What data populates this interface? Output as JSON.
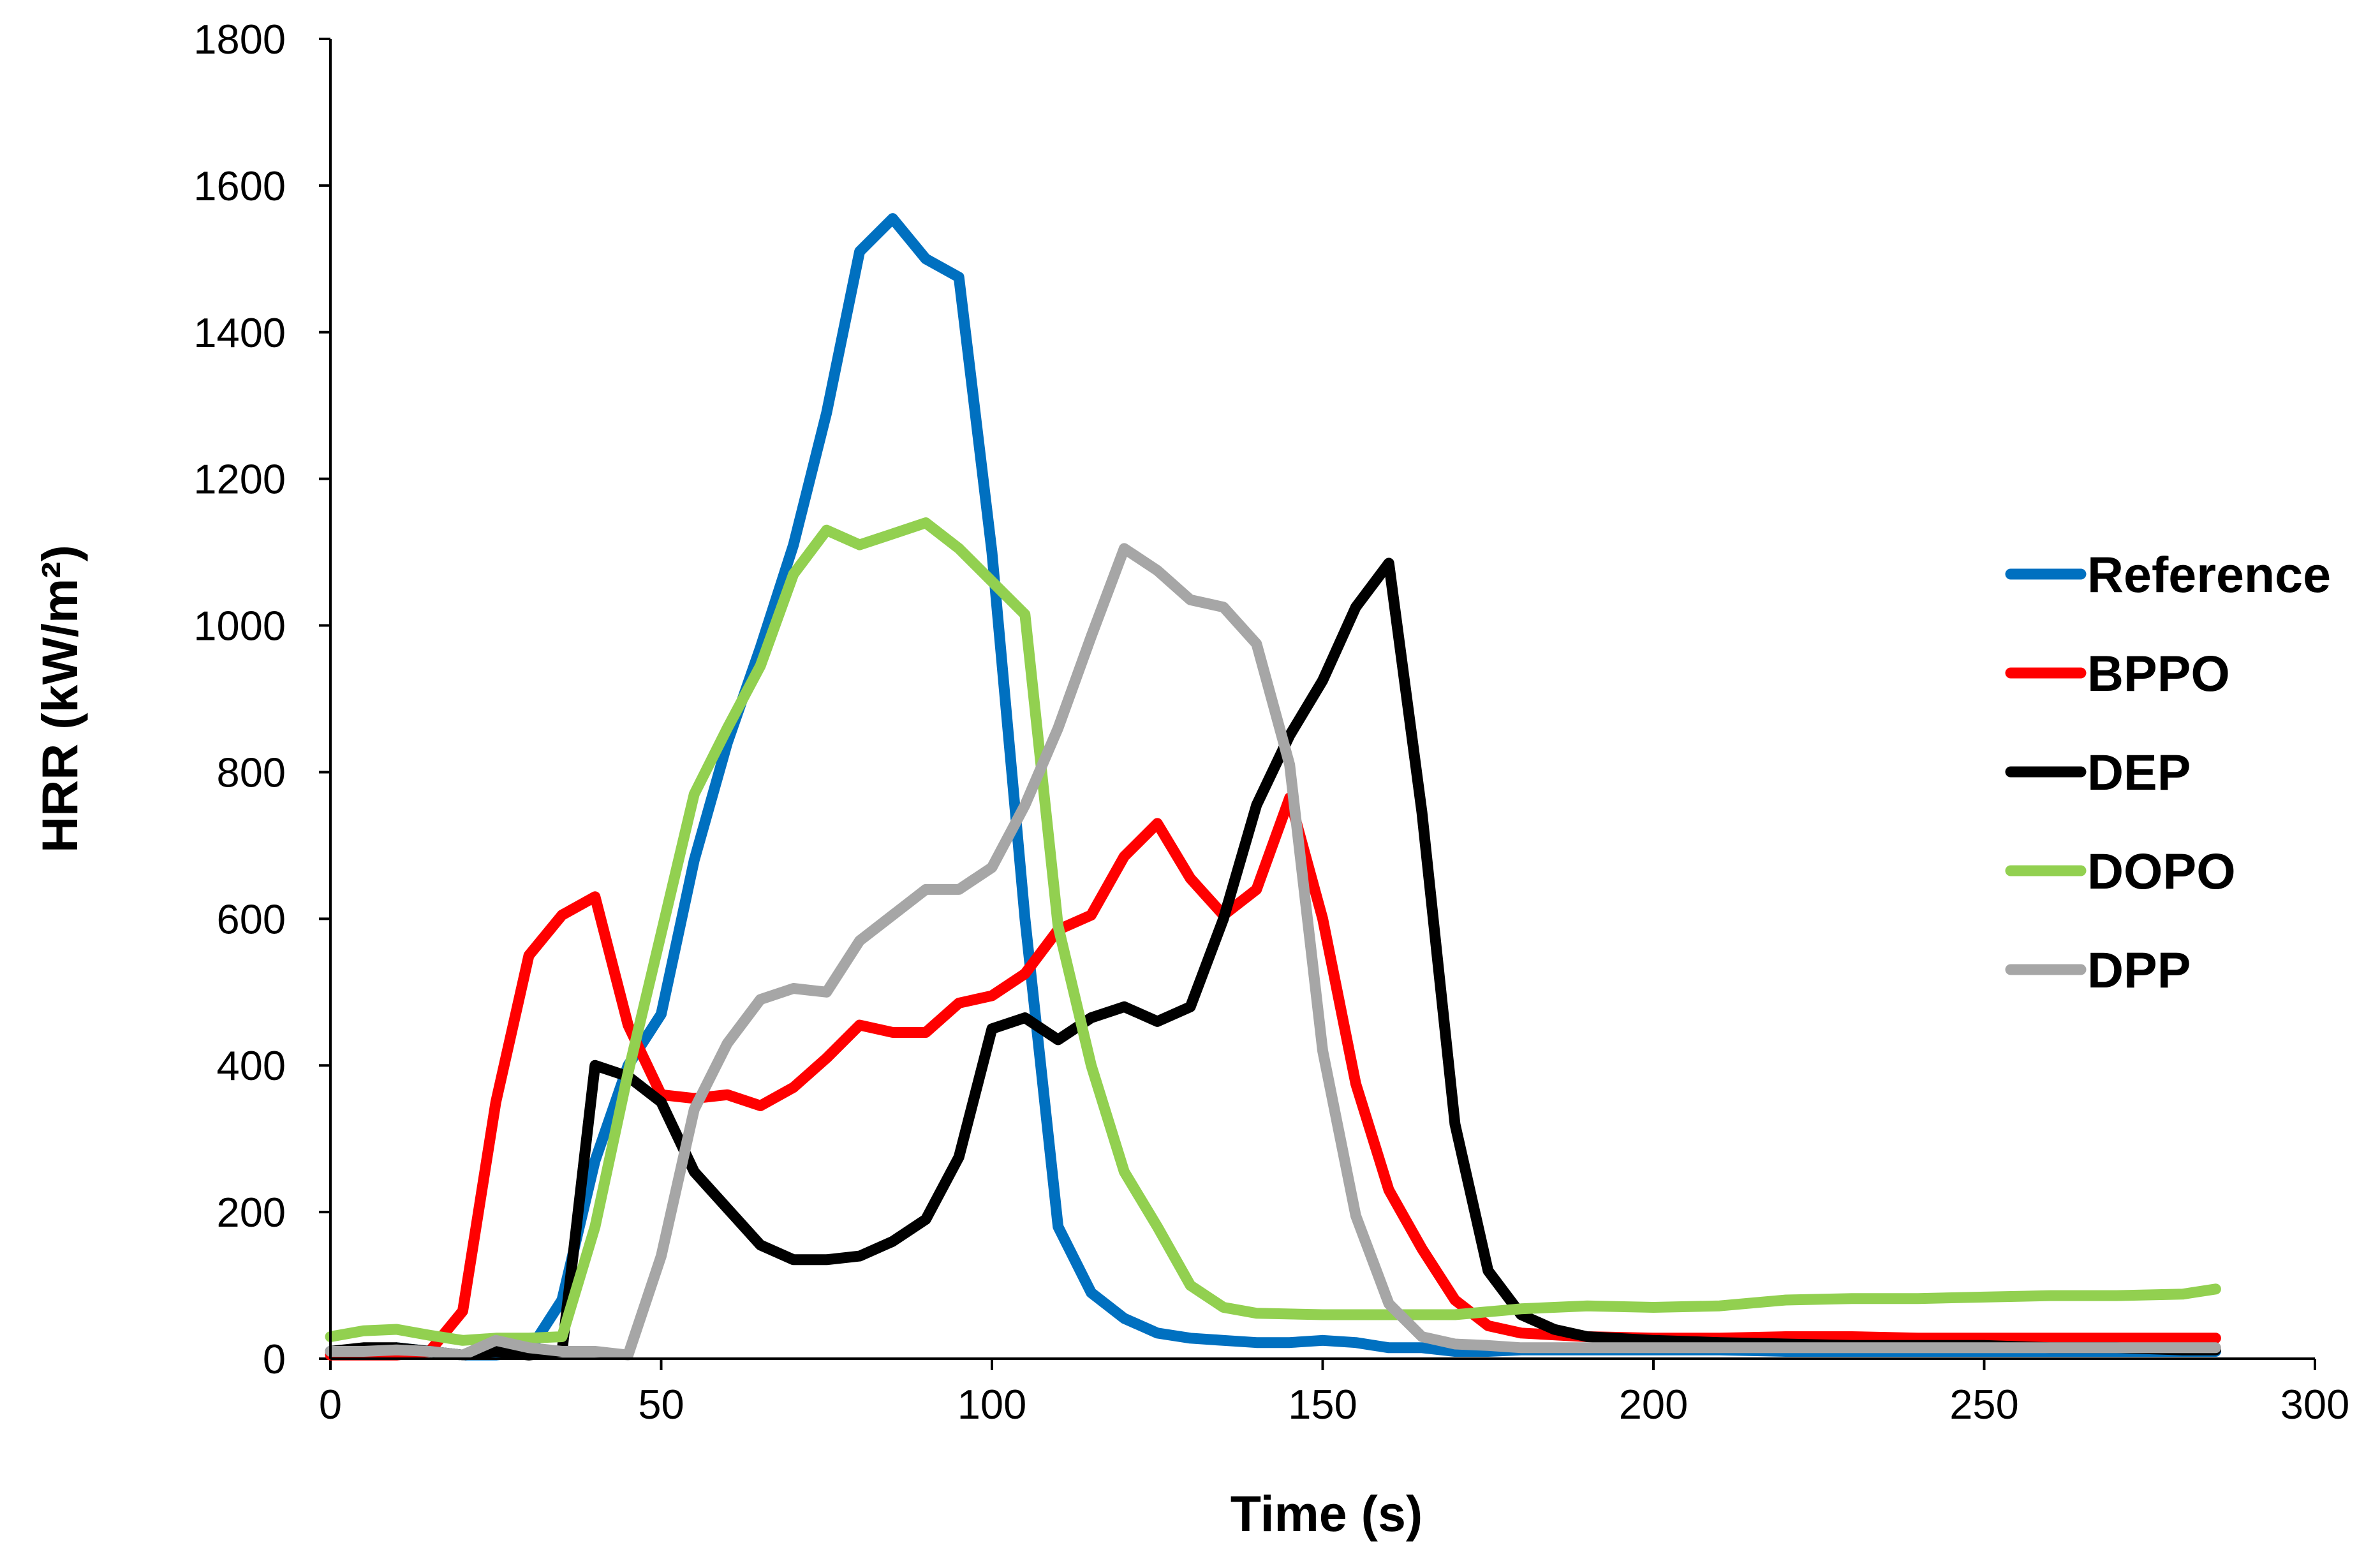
{
  "chart_data": {
    "type": "line",
    "title": "",
    "xlabel": "Time (s)",
    "ylabel": "HRR (kW/m²)",
    "xlim": [
      0,
      300
    ],
    "ylim": [
      0,
      1800
    ],
    "xticks": [
      0,
      50,
      100,
      150,
      200,
      250,
      300
    ],
    "yticks": [
      0,
      200,
      400,
      600,
      800,
      1000,
      1200,
      1400,
      1600,
      1800
    ],
    "grid": false,
    "legend_position": "right",
    "series": [
      {
        "name": "Reference",
        "color": "#0070C0",
        "x": [
          0,
          5,
          10,
          15,
          20,
          25,
          30,
          35,
          40,
          45,
          50,
          55,
          60,
          65,
          70,
          75,
          80,
          85,
          90,
          95,
          100,
          105,
          110,
          115,
          120,
          125,
          130,
          135,
          140,
          145,
          150,
          155,
          160,
          165,
          170,
          175,
          180,
          190,
          200,
          210,
          220,
          230,
          240,
          250,
          260,
          270,
          280,
          285
        ],
        "y": [
          10,
          12,
          15,
          10,
          5,
          5,
          10,
          80,
          270,
          400,
          470,
          680,
          840,
          970,
          1110,
          1290,
          1510,
          1555,
          1500,
          1475,
          1100,
          600,
          180,
          90,
          55,
          35,
          28,
          25,
          22,
          22,
          25,
          22,
          15,
          15,
          10,
          10,
          12,
          12,
          12,
          12,
          10,
          10,
          10,
          10,
          10,
          10,
          10,
          10
        ]
      },
      {
        "name": "BPPO",
        "color": "#FF0000",
        "x": [
          0,
          5,
          10,
          15,
          20,
          25,
          30,
          35,
          40,
          45,
          50,
          55,
          60,
          65,
          70,
          75,
          80,
          85,
          90,
          95,
          100,
          105,
          110,
          115,
          120,
          125,
          130,
          135,
          140,
          145,
          150,
          155,
          160,
          165,
          170,
          175,
          180,
          190,
          200,
          210,
          220,
          230,
          240,
          250,
          260,
          270,
          280,
          285
        ],
        "y": [
          5,
          5,
          5,
          10,
          65,
          350,
          550,
          605,
          630,
          455,
          360,
          355,
          360,
          345,
          370,
          410,
          455,
          445,
          445,
          485,
          495,
          525,
          585,
          605,
          685,
          730,
          655,
          605,
          640,
          765,
          600,
          375,
          230,
          150,
          80,
          45,
          35,
          30,
          28,
          28,
          30,
          30,
          28,
          28,
          28,
          28,
          28,
          28
        ]
      },
      {
        "name": "DEP",
        "color": "#000000",
        "x": [
          0,
          5,
          10,
          15,
          20,
          25,
          30,
          35,
          40,
          45,
          50,
          55,
          60,
          65,
          70,
          75,
          80,
          85,
          90,
          95,
          100,
          105,
          110,
          115,
          120,
          125,
          130,
          135,
          140,
          145,
          150,
          155,
          160,
          165,
          170,
          175,
          180,
          185,
          190,
          200,
          210,
          220,
          230,
          240,
          250,
          260,
          270,
          280,
          285
        ],
        "y": [
          10,
          15,
          15,
          10,
          5,
          10,
          5,
          10,
          400,
          385,
          350,
          255,
          205,
          155,
          135,
          135,
          140,
          160,
          190,
          275,
          450,
          465,
          435,
          465,
          480,
          460,
          480,
          600,
          755,
          850,
          925,
          1025,
          1085,
          745,
          320,
          120,
          60,
          40,
          30,
          25,
          22,
          20,
          18,
          18,
          18,
          15,
          15,
          12,
          12
        ]
      },
      {
        "name": "DOPO",
        "color": "#92D050",
        "x": [
          0,
          5,
          10,
          15,
          20,
          25,
          30,
          35,
          40,
          45,
          50,
          55,
          60,
          65,
          70,
          75,
          80,
          85,
          90,
          95,
          100,
          105,
          110,
          115,
          120,
          125,
          130,
          135,
          140,
          150,
          160,
          170,
          180,
          190,
          200,
          210,
          220,
          230,
          240,
          250,
          260,
          270,
          280,
          285
        ],
        "y": [
          30,
          38,
          40,
          32,
          25,
          28,
          28,
          30,
          180,
          390,
          580,
          770,
          860,
          945,
          1070,
          1130,
          1110,
          1125,
          1140,
          1105,
          1060,
          1015,
          590,
          400,
          255,
          180,
          100,
          70,
          62,
          60,
          60,
          60,
          68,
          72,
          70,
          72,
          80,
          82,
          82,
          84,
          86,
          86,
          88,
          95
        ]
      },
      {
        "name": "DPP",
        "color": "#A6A6A6",
        "x": [
          0,
          5,
          10,
          15,
          20,
          25,
          30,
          35,
          40,
          45,
          50,
          55,
          60,
          65,
          70,
          75,
          80,
          85,
          90,
          95,
          100,
          105,
          110,
          115,
          120,
          125,
          130,
          135,
          140,
          145,
          150,
          155,
          160,
          165,
          170,
          175,
          180,
          190,
          200,
          210,
          220,
          230,
          240,
          250,
          260,
          270,
          280,
          285
        ],
        "y": [
          10,
          10,
          12,
          10,
          5,
          25,
          15,
          10,
          10,
          5,
          140,
          340,
          430,
          490,
          505,
          500,
          570,
          605,
          640,
          640,
          670,
          755,
          860,
          985,
          1105,
          1075,
          1035,
          1025,
          975,
          810,
          420,
          195,
          75,
          30,
          20,
          18,
          15,
          15,
          15,
          15,
          15,
          15,
          15,
          15,
          15,
          15,
          15,
          15
        ]
      }
    ]
  }
}
